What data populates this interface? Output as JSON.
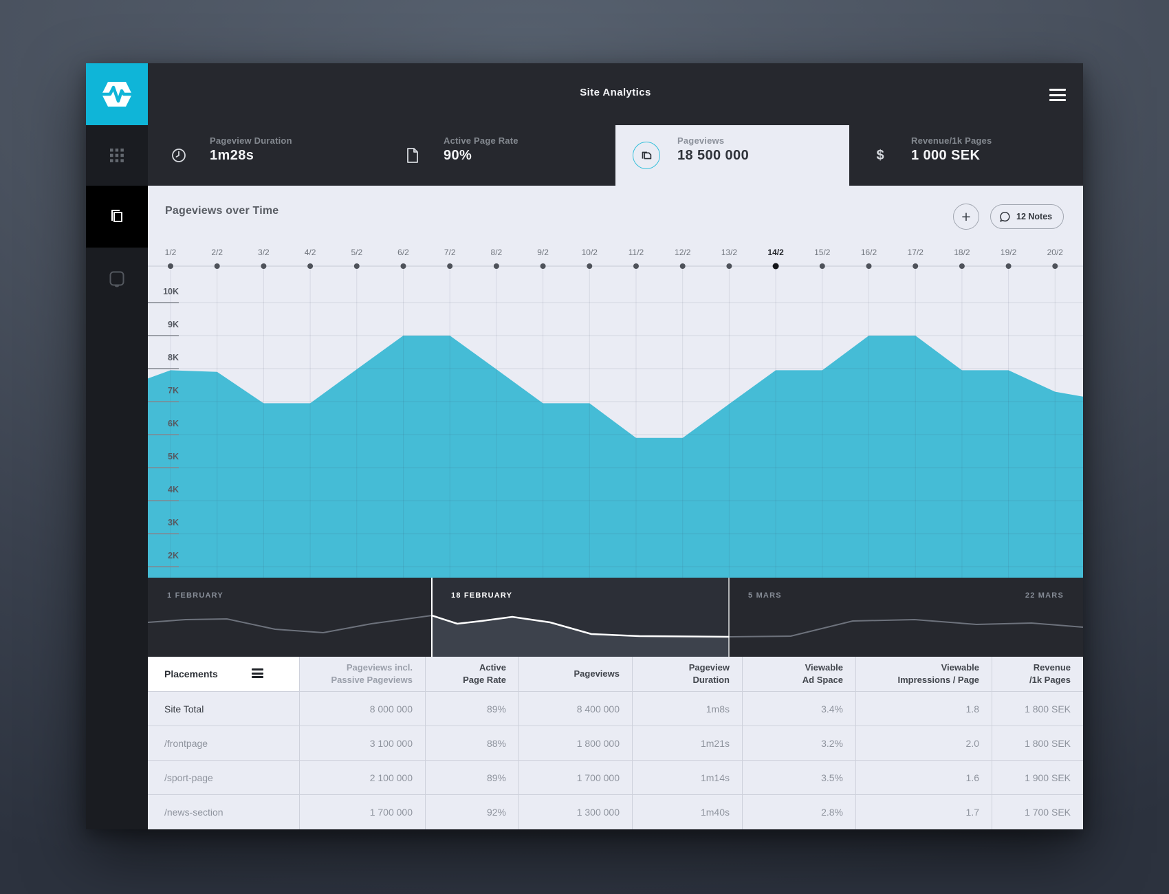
{
  "app": {
    "title": "Site Analytics"
  },
  "sidebar": {
    "logo": "pulse-logo",
    "items": [
      {
        "icon": "grid-icon",
        "active": false
      },
      {
        "icon": "pages-icon",
        "active": true
      },
      {
        "icon": "device-icon",
        "active": false
      }
    ]
  },
  "stats": {
    "tabs": [
      {
        "icon": "clock-icon",
        "label": "Pageview Duration",
        "value": "1m28s",
        "selected": false
      },
      {
        "icon": "file-icon",
        "label": "Active Page Rate",
        "value": "90%",
        "selected": false
      },
      {
        "icon": "pages-icon",
        "label": "Pageviews",
        "value": "18 500 000",
        "selected": true
      },
      {
        "icon": "dollar-icon",
        "label": "Revenue/1k Pages",
        "value": "1 000 SEK",
        "selected": false
      }
    ]
  },
  "chart": {
    "title": "Pageviews over Time",
    "add_button": "+",
    "notes_button": "12 Notes",
    "chart_data": {
      "type": "area",
      "x_labels": [
        "1/2",
        "2/2",
        "3/2",
        "4/2",
        "5/2",
        "6/2",
        "7/2",
        "8/2",
        "9/2",
        "10/2",
        "11/2",
        "12/2",
        "13/2",
        "14/2",
        "15/2",
        "16/2",
        "17/2",
        "18/2",
        "19/2",
        "20/2"
      ],
      "active_x": "14/2",
      "values_k": [
        7.95,
        7.9,
        6.95,
        6.95,
        7.98,
        9.0,
        9.0,
        7.98,
        6.95,
        6.95,
        5.9,
        5.9,
        6.93,
        7.95,
        7.95,
        9.0,
        9.0,
        7.95,
        7.95,
        7.3
      ],
      "edge_values_k": {
        "left": 7.7,
        "right": 7.15
      },
      "y_ticks": [
        "10K",
        "9K",
        "8K",
        "7K",
        "6K",
        "5K",
        "4K",
        "3K",
        "2K"
      ],
      "y_range_k": [
        10,
        2
      ],
      "grid": true,
      "area_color": "#45bcd6"
    }
  },
  "scrubber": {
    "sections": [
      {
        "label": "1 FEBRUARY",
        "active": false
      },
      {
        "label": "18 FEBRUARY",
        "active": true
      },
      {
        "label": "5 MARS",
        "active": false
      },
      {
        "label": "22 MARS",
        "active": false
      }
    ],
    "spark_points": [
      [
        0,
        65
      ],
      [
        55,
        61
      ],
      [
        115,
        60
      ],
      [
        185,
        75
      ],
      [
        255,
        80
      ],
      [
        325,
        67
      ],
      [
        413,
        55
      ],
      [
        450,
        67
      ],
      [
        485,
        63
      ],
      [
        530,
        57
      ],
      [
        585,
        65
      ],
      [
        645,
        82
      ],
      [
        715,
        85
      ],
      [
        845,
        86
      ],
      [
        935,
        85
      ],
      [
        1025,
        63
      ],
      [
        1115,
        61
      ],
      [
        1205,
        68
      ],
      [
        1285,
        66
      ],
      [
        1360,
        72
      ]
    ]
  },
  "table": {
    "columns": [
      {
        "label": "Placements",
        "dimmed": false
      },
      {
        "label": "Pageviews incl.\nPassive Pageviews",
        "dimmed": true
      },
      {
        "label": "Active\nPage Rate",
        "dimmed": false
      },
      {
        "label": "Pageviews",
        "dimmed": false
      },
      {
        "label": "Pageview\nDuration",
        "dimmed": false
      },
      {
        "label": "Viewable\nAd Space",
        "dimmed": false
      },
      {
        "label": "Viewable\nImpressions / Page",
        "dimmed": false
      },
      {
        "label": "Revenue\n/1k Pages",
        "dimmed": false
      }
    ],
    "rows": [
      {
        "placement": "Site Total",
        "total": true,
        "cells": [
          "8 000 000",
          "89%",
          "8 400 000",
          "1m8s",
          "3.4%",
          "1.8",
          "1 800 SEK"
        ]
      },
      {
        "placement": "/frontpage",
        "total": false,
        "cells": [
          "3 100 000",
          "88%",
          "1 800 000",
          "1m21s",
          "3.2%",
          "2.0",
          "1 800 SEK"
        ]
      },
      {
        "placement": "/sport-page",
        "total": false,
        "cells": [
          "2 100 000",
          "89%",
          "1 700 000",
          "1m14s",
          "3.5%",
          "1.6",
          "1 900 SEK"
        ]
      },
      {
        "placement": "/news-section",
        "total": false,
        "cells": [
          "1 700 000",
          "92%",
          "1 300 000",
          "1m40s",
          "2.8%",
          "1.7",
          "1 700 SEK"
        ]
      }
    ]
  }
}
